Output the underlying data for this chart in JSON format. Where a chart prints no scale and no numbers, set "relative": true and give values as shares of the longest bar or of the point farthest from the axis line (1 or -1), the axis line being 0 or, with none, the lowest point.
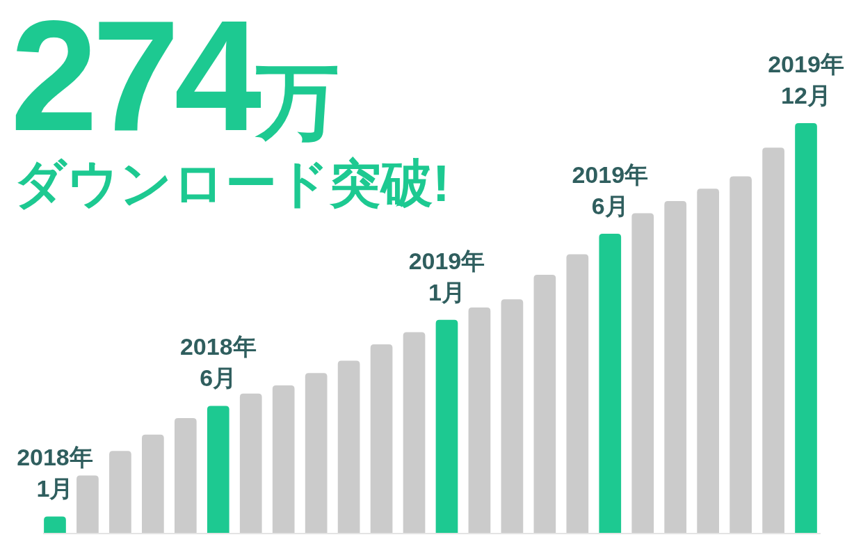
{
  "chart_data": {
    "type": "bar",
    "title": "274万",
    "subtitle": "ダウンロード突破!",
    "categories": [
      "2018年 1月",
      null,
      null,
      null,
      null,
      "2018年 6月",
      null,
      null,
      null,
      null,
      null,
      null,
      "2019年 1月",
      null,
      null,
      null,
      null,
      "2019年 6月",
      null,
      null,
      null,
      null,
      null,
      "2019年 12月"
    ],
    "values": [
      0.04,
      0.14,
      0.2,
      0.24,
      0.28,
      0.31,
      0.34,
      0.36,
      0.39,
      0.42,
      0.46,
      0.49,
      0.52,
      0.55,
      0.57,
      0.63,
      0.68,
      0.73,
      0.78,
      0.81,
      0.84,
      0.87,
      0.94,
      1
    ],
    "colors": [
      "#1dc991",
      "#cbcbcb",
      "#cbcbcb",
      "#cbcbcb",
      "#cbcbcb",
      "#1dc991",
      "#cbcbcb",
      "#cbcbcb",
      "#cbcbcb",
      "#cbcbcb",
      "#cbcbcb",
      "#cbcbcb",
      "#1dc991",
      "#cbcbcb",
      "#cbcbcb",
      "#cbcbcb",
      "#cbcbcb",
      "#1dc991",
      "#cbcbcb",
      "#cbcbcb",
      "#cbcbcb",
      "#cbcbcb",
      "#cbcbcb",
      "#1dc991"
    ],
    "relative": true
  }
}
